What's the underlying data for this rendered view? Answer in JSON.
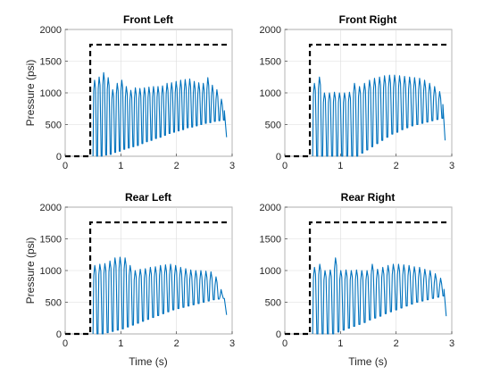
{
  "colors": {
    "pressure_line": "#0072bd",
    "command_line": "#000000"
  },
  "chart_data": [
    {
      "type": "line",
      "title": "Front Left",
      "xlabel": "",
      "ylabel": "Pressure (psi)",
      "xlim": [
        0,
        3
      ],
      "ylim": [
        0,
        2000
      ],
      "xticks": [
        "0",
        "1",
        "2",
        "3"
      ],
      "yticks": [
        "0",
        "500",
        "1000",
        "1500",
        "2000"
      ],
      "grid": true,
      "series": [
        {
          "style": "dashed",
          "x": [
            0,
            0.45,
            0.45,
            2.95
          ],
          "y": [
            0,
            0,
            1760,
            1760
          ]
        },
        {
          "style": "solid",
          "start_time": 0.5,
          "lows": [
            0,
            0,
            20,
            30,
            60,
            80,
            110,
            130,
            150,
            170,
            200,
            230,
            250,
            280,
            300,
            330,
            360,
            380,
            400,
            420,
            450,
            460,
            480,
            500,
            520,
            530,
            550,
            560,
            570
          ],
          "highs": [
            1200,
            1250,
            1320,
            1240,
            1050,
            1150,
            1200,
            1100,
            1040,
            1080,
            1070,
            1080,
            1090,
            1100,
            1100,
            1110,
            1150,
            1160,
            1180,
            1200,
            1210,
            1220,
            1180,
            1160,
            1150,
            1240,
            1120,
            1050,
            900
          ],
          "end_time": 2.9,
          "end_value": 300
        }
      ]
    },
    {
      "type": "line",
      "title": "Front Right",
      "xlabel": "",
      "ylabel": "",
      "xlim": [
        0,
        3
      ],
      "ylim": [
        0,
        2000
      ],
      "xticks": [
        "0",
        "1",
        "2",
        "3"
      ],
      "yticks": [
        "0",
        "500",
        "1000",
        "1500",
        "2000"
      ],
      "grid": true,
      "series": [
        {
          "style": "dashed",
          "x": [
            0,
            0.45,
            0.45,
            2.95
          ],
          "y": [
            0,
            0,
            1760,
            1760
          ]
        },
        {
          "style": "solid",
          "start_time": 0.5,
          "lows": [
            0,
            0,
            0,
            0,
            0,
            0,
            0,
            0,
            0,
            50,
            100,
            150,
            200,
            250,
            300,
            350,
            380,
            420,
            450,
            480,
            500,
            520,
            540,
            560,
            580,
            600
          ],
          "highs": [
            1150,
            1250,
            1000,
            1000,
            1010,
            1000,
            1000,
            1010,
            1150,
            1100,
            1150,
            1200,
            1230,
            1250,
            1270,
            1280,
            1280,
            1270,
            1260,
            1250,
            1240,
            1230,
            1200,
            1150,
            1100,
            1020
          ],
          "end_time": 2.88,
          "end_value": 250
        }
      ]
    },
    {
      "type": "line",
      "title": "Rear Left",
      "xlabel": "Time (s)",
      "ylabel": "Pressure (psi)",
      "xlim": [
        0,
        3
      ],
      "ylim": [
        0,
        2000
      ],
      "xticks": [
        "0",
        "1",
        "2",
        "3"
      ],
      "yticks": [
        "0",
        "500",
        "1000",
        "1500",
        "2000"
      ],
      "grid": true,
      "series": [
        {
          "style": "dashed",
          "x": [
            0,
            0.45,
            0.45,
            2.95
          ],
          "y": [
            0,
            0,
            1760,
            1760
          ]
        },
        {
          "style": "solid",
          "start_time": 0.5,
          "lows": [
            0,
            0,
            20,
            40,
            60,
            80,
            110,
            140,
            170,
            200,
            230,
            260,
            290,
            320,
            350,
            380,
            400,
            420,
            440,
            460,
            480,
            500,
            520,
            540,
            550,
            560
          ],
          "highs": [
            1080,
            1100,
            1110,
            1150,
            1200,
            1210,
            1200,
            1080,
            1000,
            1020,
            1030,
            1050,
            1060,
            1080,
            1090,
            1100,
            1080,
            1050,
            1030,
            1010,
            1000,
            1000,
            990,
            980,
            900,
            700
          ],
          "end_time": 2.9,
          "end_value": 300
        }
      ]
    },
    {
      "type": "line",
      "title": "Rear Right",
      "xlabel": "Time (s)",
      "ylabel": "",
      "xlim": [
        0,
        3
      ],
      "ylim": [
        0,
        2000
      ],
      "xticks": [
        "0",
        "1",
        "2",
        "3"
      ],
      "yticks": [
        "0",
        "500",
        "1000",
        "1500",
        "2000"
      ],
      "grid": true,
      "series": [
        {
          "style": "dashed",
          "x": [
            0,
            0.45,
            0.45,
            2.95
          ],
          "y": [
            0,
            0,
            1760,
            1760
          ]
        },
        {
          "style": "solid",
          "start_time": 0.5,
          "lows": [
            0,
            0,
            0,
            0,
            30,
            60,
            90,
            120,
            150,
            180,
            220,
            250,
            280,
            320,
            350,
            380,
            410,
            440,
            470,
            500,
            520,
            540,
            560,
            580,
            600
          ],
          "highs": [
            1050,
            1100,
            1000,
            1010,
            1200,
            1000,
            1010,
            1000,
            1010,
            1000,
            1000,
            1100,
            1020,
            1050,
            1080,
            1100,
            1100,
            1090,
            1080,
            1060,
            1050,
            1020,
            1000,
            950,
            880
          ],
          "end_time": 2.9,
          "end_value": 280
        }
      ]
    }
  ]
}
